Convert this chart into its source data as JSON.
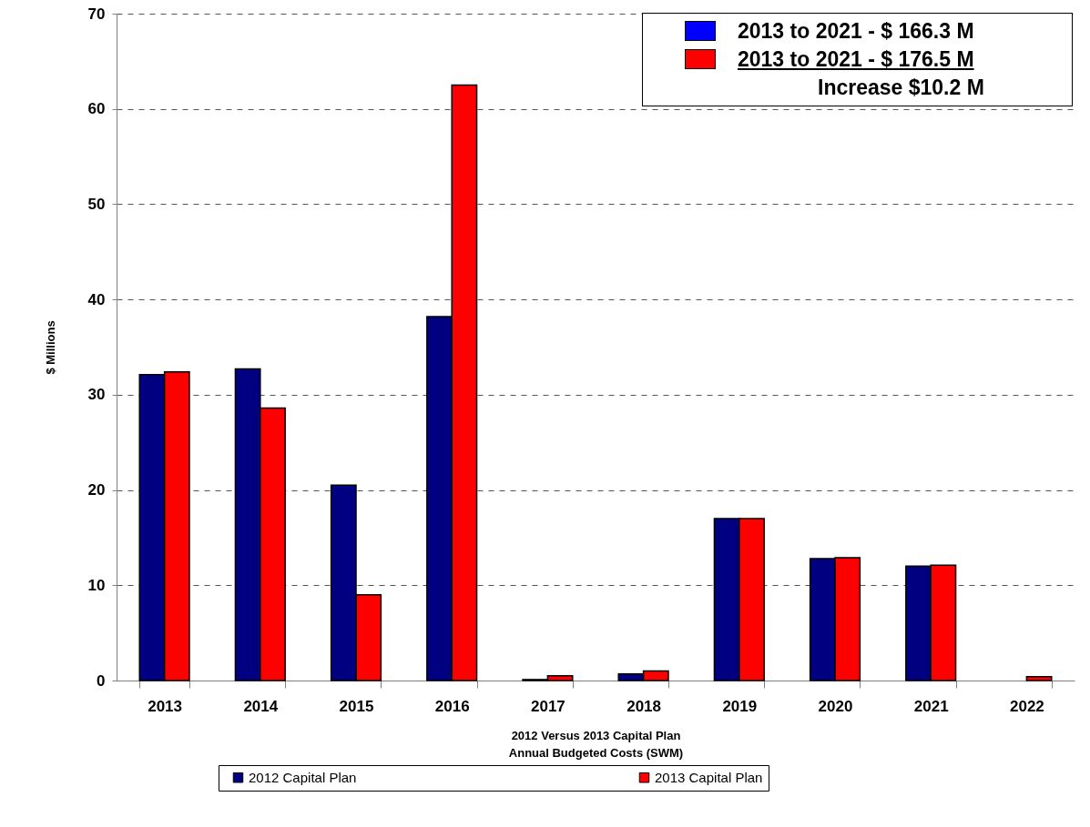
{
  "chart_data": {
    "type": "bar",
    "xlabel": "2012 Versus 2013 Capital Plan\nAnnual Budgeted Costs (SWM)",
    "ylabel": "$ Millions",
    "categories": [
      "2013",
      "2014",
      "2015",
      "2016",
      "2017",
      "2018",
      "2019",
      "2020",
      "2021",
      "2022"
    ],
    "series": [
      {
        "name": "2012 Capital Plan",
        "color": "#000080",
        "values": [
          32.1,
          32.7,
          20.5,
          38.2,
          0.1,
          0.7,
          17.0,
          12.8,
          12.0,
          null
        ]
      },
      {
        "name": "2013 Capital Plan",
        "color": "#ff0000",
        "values": [
          32.4,
          28.6,
          9.0,
          62.5,
          0.5,
          1.0,
          17.0,
          12.9,
          12.1,
          0.4
        ]
      }
    ],
    "ylim": [
      0,
      70
    ],
    "yticks": [
      0,
      10,
      20,
      30,
      40,
      50,
      60,
      70
    ],
    "grid": "y",
    "legend": "bottom",
    "annotations": [
      "2013 to 2021 - $ 166.3 M",
      "2013 to 2021 - $ 176.5 M",
      "Increase $10.2 M"
    ]
  }
}
